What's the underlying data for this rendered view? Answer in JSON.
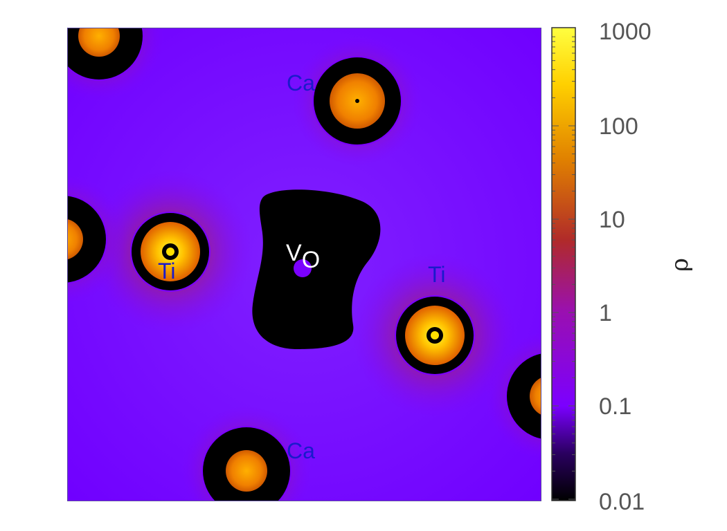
{
  "chart_data": {
    "type": "heatmap",
    "title": "",
    "xlabel": "",
    "ylabel": "",
    "colorbar": {
      "label": "ρ",
      "scale": "log",
      "range": [
        0.01,
        1000
      ],
      "ticks": [
        0.01,
        0.1,
        1,
        10,
        100,
        1000
      ],
      "tick_labels": [
        "0.01",
        "0.1",
        "1",
        "10",
        "100",
        "1000"
      ],
      "colormap": [
        "#000000",
        "#3a0080",
        "#7b00ff",
        "#b02a2a",
        "#e08000",
        "#ffd400",
        "#ffff40"
      ]
    },
    "background_density": 0.2,
    "sites": [
      {
        "label": "Ca",
        "peak_density": 200
      },
      {
        "label": "Ca",
        "peak_density": 100
      },
      {
        "label": "Ti",
        "peak_density": 1000
      },
      {
        "label": "Ti",
        "peak_density": 1000
      },
      {
        "label": "",
        "peak_density": 100
      },
      {
        "label": "",
        "peak_density": 100
      },
      {
        "label": "",
        "peak_density": 100
      }
    ],
    "vacancy": {
      "label": "V",
      "subscript": "O",
      "density": 0.01
    }
  }
}
